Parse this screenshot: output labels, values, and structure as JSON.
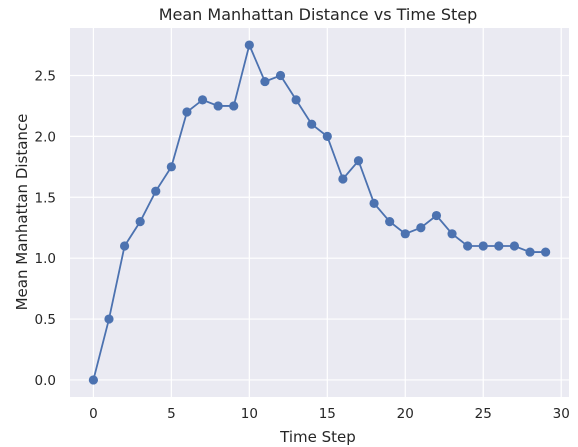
{
  "chart_data": {
    "type": "line",
    "title": "Mean Manhattan Distance vs Time Step",
    "xlabel": "Time Step",
    "ylabel": "Mean Manhattan Distance",
    "xlim": [
      -1.5,
      30.5
    ],
    "ylim": [
      -0.14,
      2.89
    ],
    "xticks": [
      0,
      5,
      10,
      15,
      20,
      25,
      30
    ],
    "yticks": [
      0.0,
      0.5,
      1.0,
      1.5,
      2.0,
      2.5
    ],
    "xtick_labels": [
      "0",
      "5",
      "10",
      "15",
      "20",
      "25",
      "30"
    ],
    "ytick_labels": [
      "0.0",
      "0.5",
      "1.0",
      "1.5",
      "2.0",
      "2.5"
    ],
    "grid": true,
    "background": "#eaeaf2",
    "grid_color": "#ffffff",
    "line_color": "#4c72b0",
    "marker": "circle",
    "x": [
      0,
      1,
      2,
      3,
      4,
      5,
      6,
      7,
      8,
      9,
      10,
      11,
      12,
      13,
      14,
      15,
      16,
      17,
      18,
      19,
      20,
      21,
      22,
      23,
      24,
      25,
      26,
      27,
      28,
      29
    ],
    "y": [
      0.0,
      0.5,
      1.1,
      1.3,
      1.55,
      1.75,
      2.2,
      2.3,
      2.25,
      2.25,
      2.75,
      2.45,
      2.5,
      2.3,
      2.1,
      2.0,
      1.65,
      1.8,
      1.45,
      1.3,
      1.2,
      1.25,
      1.35,
      1.2,
      1.1,
      1.1,
      1.1,
      1.1,
      1.05,
      1.05
    ]
  }
}
